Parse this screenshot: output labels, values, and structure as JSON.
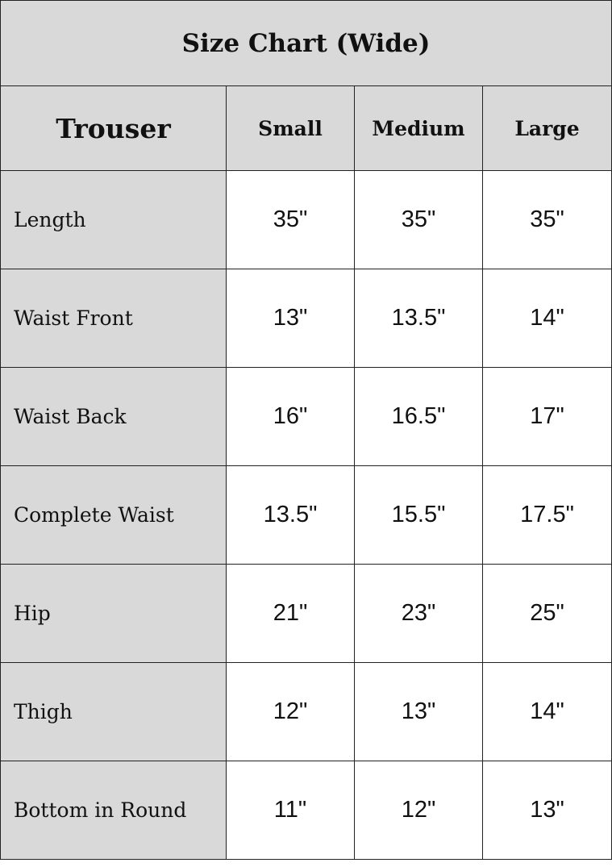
{
  "title": "Size Chart (Wide)",
  "header": [
    "Trouser",
    "Small",
    "Medium",
    "Large"
  ],
  "rows": [
    {
      "label": "Length",
      "values": [
        "35\"",
        "35\"",
        "35\""
      ]
    },
    {
      "label": "Waist Front",
      "values": [
        "13\"",
        "13.5\"",
        "14\""
      ]
    },
    {
      "label": "Waist Back",
      "values": [
        "16\"",
        "16.5\"",
        "17\""
      ]
    },
    {
      "label": "Complete Waist",
      "values": [
        "13.5\"",
        "15.5\"",
        "17.5\""
      ]
    },
    {
      "label": "Hip",
      "values": [
        "21\"",
        "23\"",
        "25\""
      ]
    },
    {
      "label": "Thigh",
      "values": [
        "12\"",
        "13\"",
        "14\""
      ]
    },
    {
      "label": "Bottom in Round",
      "values": [
        "11\"",
        "12\"",
        "13\""
      ]
    }
  ],
  "colors": {
    "header_bg": "#d9d9d9",
    "cell_bg": "#ffffff",
    "border": "#222222"
  }
}
